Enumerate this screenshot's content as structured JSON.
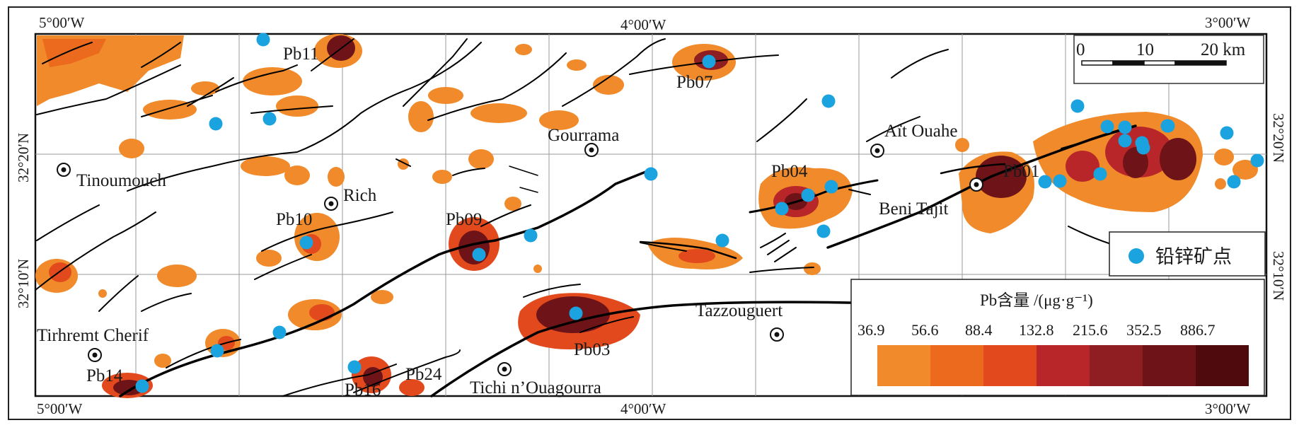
{
  "colors": {
    "point": "#1aa3df",
    "fault": "#000000",
    "grid": "#9a9a9a",
    "classes": [
      "#f08a2a",
      "#ec6a1e",
      "#e24a1e",
      "#b8262a",
      "#8f1e22",
      "#6e1418",
      "#4e0a0d"
    ]
  },
  "coordinates": {
    "top": [
      "5°00′W",
      "4°00′W",
      "3°00′W"
    ],
    "bottom": [
      "5°00′W",
      "4°00′W",
      "3°00′W"
    ],
    "left": [
      "32°20′N",
      "32°10′N"
    ],
    "right": [
      "32°20′N",
      "32°10′N"
    ]
  },
  "places": [
    {
      "id": "tinoumouch",
      "label": "Tinoumouch"
    },
    {
      "id": "rich",
      "label": "Rich"
    },
    {
      "id": "gourrama",
      "label": "Gourrama"
    },
    {
      "id": "ait-ouahe",
      "label": "Aït Ouahe"
    },
    {
      "id": "beni-tajit",
      "label": "Beni Tajit"
    },
    {
      "id": "tazzouguert",
      "label": "Tazzouguert"
    },
    {
      "id": "tirhremt-cherif",
      "label": "Tirhremt Cherif"
    },
    {
      "id": "tichi",
      "label": "Tichi n’Ouagourra"
    }
  ],
  "anomalies": [
    "Pb11",
    "Pb07",
    "Pb04",
    "Pb01",
    "Pb10",
    "Pb09",
    "Pb03",
    "Pb14",
    "Pb16",
    "Pb24"
  ],
  "scale_bar": {
    "ticks": [
      "0",
      "10",
      "20 km"
    ]
  },
  "point_legend": {
    "label": "铅锌矿点",
    "icon": "blue-dot"
  },
  "concentration_legend": {
    "title": "Pb含量 /(μg·g⁻¹)",
    "values": [
      "36.9",
      "56.6",
      "88.4",
      "132.8",
      "215.6",
      "352.5",
      "886.7"
    ]
  }
}
